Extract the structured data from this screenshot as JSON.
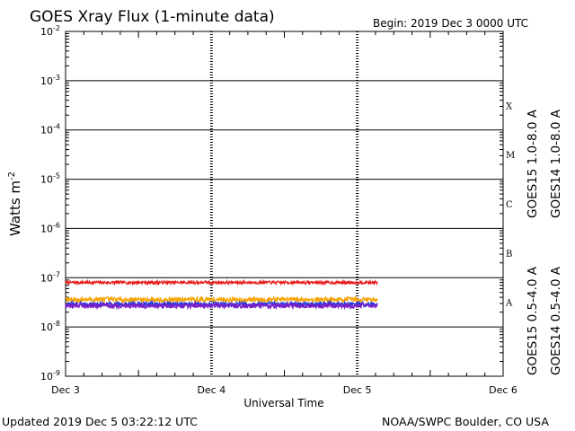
{
  "header": {
    "title": "GOES Xray Flux (1-minute data)",
    "begin": "Begin:  2019 Dec 3 0000 UTC"
  },
  "footer": {
    "updated": "Updated 2019 Dec  5 03:22:12 UTC",
    "source": "NOAA/SWPC Boulder, CO USA"
  },
  "chart_data": {
    "type": "line",
    "xlabel": "Universal Time",
    "ylabel": "Watts m",
    "ylabel_sup": "-2",
    "yscale": "log",
    "ylim": [
      1e-09,
      0.01
    ],
    "y_ticks": [
      {
        "base": "10",
        "exp": "-9",
        "value": 1e-09
      },
      {
        "base": "10",
        "exp": "-8",
        "value": 1e-08
      },
      {
        "base": "10",
        "exp": "-7",
        "value": 1e-07
      },
      {
        "base": "10",
        "exp": "-6",
        "value": 1e-06
      },
      {
        "base": "10",
        "exp": "-5",
        "value": 1e-05
      },
      {
        "base": "10",
        "exp": "-4",
        "value": 0.0001
      },
      {
        "base": "10",
        "exp": "-3",
        "value": 0.001
      },
      {
        "base": "10",
        "exp": "-2",
        "value": 0.01
      }
    ],
    "x_ticks": [
      {
        "label": "Dec 3",
        "day": 0
      },
      {
        "label": "Dec 4",
        "day": 1
      },
      {
        "label": "Dec 5",
        "day": 2
      },
      {
        "label": "Dec 6",
        "day": 3
      }
    ],
    "xlim": [
      "2019-12-03 00:00",
      "2019-12-06 00:00"
    ],
    "flare_classes": [
      {
        "label": "A",
        "value": 1e-08
      },
      {
        "label": "B",
        "value": 1e-07
      },
      {
        "label": "C",
        "value": 1e-06
      },
      {
        "label": "M",
        "value": 1e-05
      },
      {
        "label": "X",
        "value": 0.0001
      }
    ],
    "series": [
      {
        "name": "GOES15 1.0-8.0 A",
        "color": "#e61e1e",
        "start": "2019-12-03 00:00",
        "end": "2019-12-05 03:22",
        "level": 8e-08,
        "noise": 0.03
      },
      {
        "name": "GOES14 1.0-8.0 A",
        "color": "#f5a300",
        "start": "2019-12-03 00:00",
        "end": "2019-12-05 03:22",
        "level": 3.6e-08,
        "noise": 0.05
      },
      {
        "name": "GOES15 0.5-4.0 A",
        "color": "#1f3de0",
        "start": "2019-12-03 00:00",
        "end": "2019-12-05 03:22",
        "level": 2.9e-08,
        "noise": 0.05
      },
      {
        "name": "GOES14 0.5-4.0 A",
        "color": "#7a1fc8",
        "start": "2019-12-03 00:00",
        "end": "2019-12-05 03:22",
        "level": 2.7e-08,
        "noise": 0.05
      }
    ]
  }
}
